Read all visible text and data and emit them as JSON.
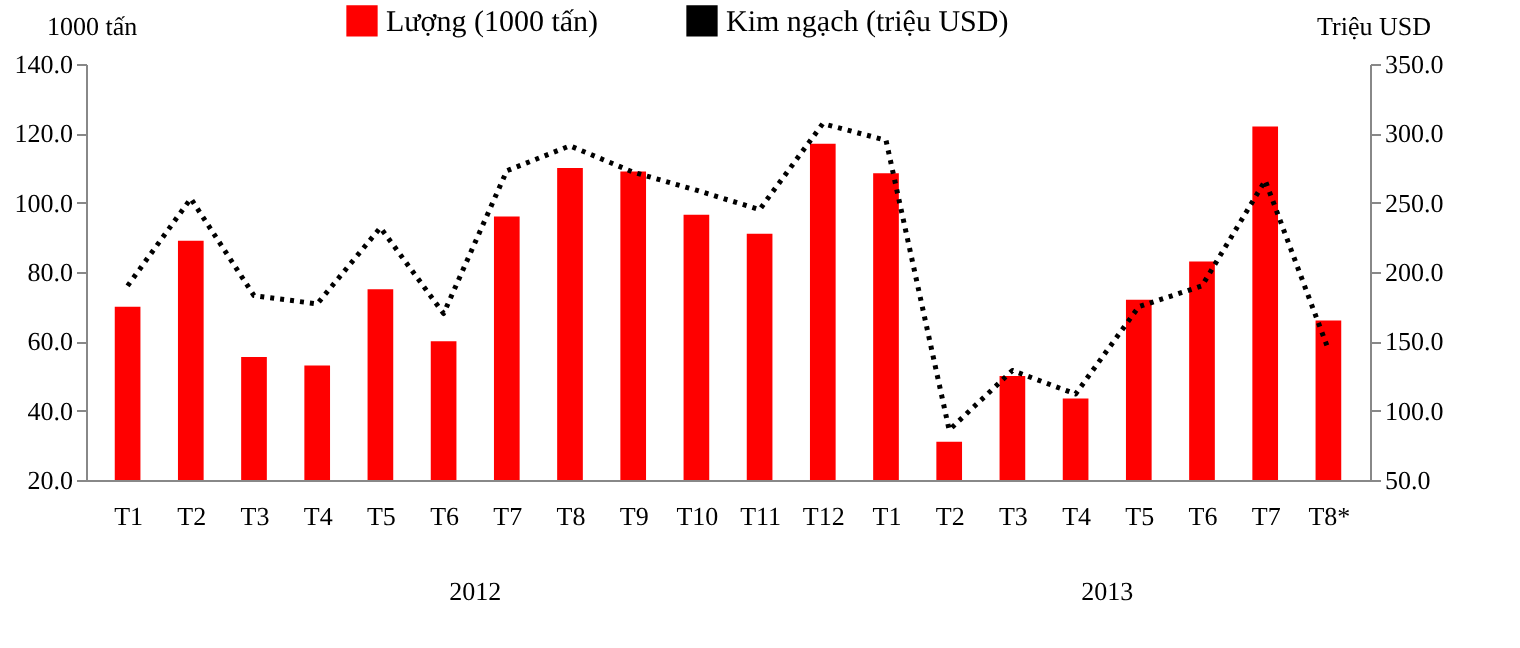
{
  "chart_data": {
    "type": "bar",
    "ylabel": "1000 tấn",
    "y2label": "Triệu USD",
    "categories": [
      "T1",
      "T2",
      "T3",
      "T4",
      "T5",
      "T6",
      "T7",
      "T8",
      "T9",
      "T10",
      "T11",
      "T12",
      "T1",
      "T2",
      "T3",
      "T4",
      "T5",
      "T6",
      "T7",
      "T8*"
    ],
    "series": [
      {
        "name": "Lượng (1000 tấn)",
        "color": "#ff0000",
        "values": [
          70,
          89,
          55.5,
          53,
          75,
          60,
          96,
          110,
          109,
          96.5,
          91,
          117,
          108.5,
          31,
          50,
          43.5,
          72,
          83,
          122,
          66
        ]
      },
      {
        "name": "Kim ngạch (triệu USD)",
        "type": "line",
        "axis": "y2",
        "color": "#000000",
        "line_style": "dotted",
        "values": [
          190,
          253,
          183,
          177,
          232,
          170,
          273,
          291,
          272,
          259,
          245,
          307,
          295,
          86,
          129,
          112,
          175,
          190,
          266,
          144
        ]
      }
    ],
    "ylim": [
      20,
      140
    ],
    "yticks": [
      {
        "value": 20,
        "label": "20.0"
      },
      {
        "value": 40,
        "label": "40.0"
      },
      {
        "value": 60,
        "label": "60.0"
      },
      {
        "value": 80,
        "label": "80.0"
      },
      {
        "value": 100,
        "label": "100.0"
      },
      {
        "value": 120,
        "label": "120.0"
      },
      {
        "value": 140,
        "label": "140.0"
      }
    ],
    "y2lim": [
      50,
      350
    ],
    "y2ticks": [
      {
        "value": 50,
        "label": "50.0"
      },
      {
        "value": 100,
        "label": "100.0"
      },
      {
        "value": 150,
        "label": "150.0"
      },
      {
        "value": 200,
        "label": "200.0"
      },
      {
        "value": 250,
        "label": "250.0"
      },
      {
        "value": 300,
        "label": "300.0"
      },
      {
        "value": 350,
        "label": "350.0"
      }
    ],
    "annotations": [
      "2012",
      "2013"
    ],
    "legend": "top",
    "grid": false
  }
}
